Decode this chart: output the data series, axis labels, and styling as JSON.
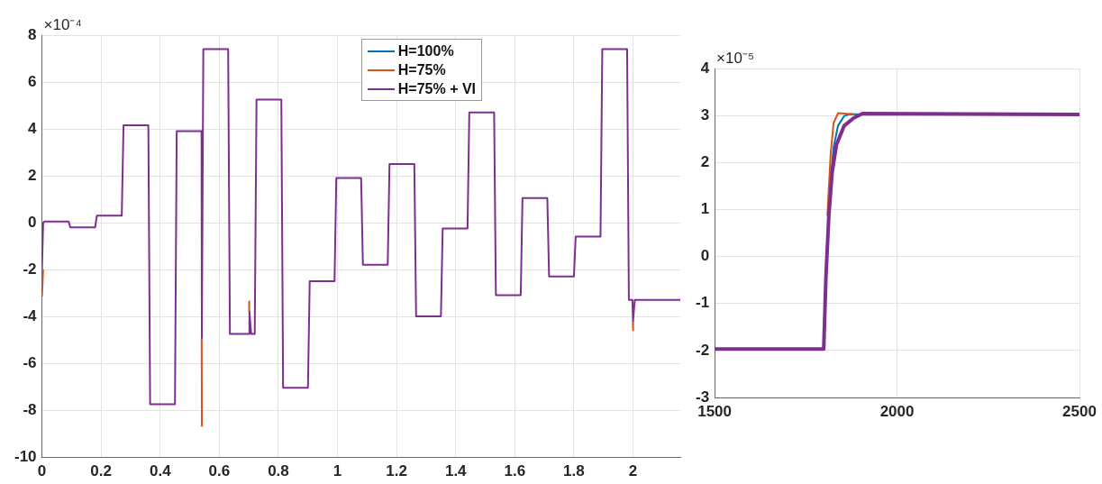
{
  "chart_data": [
    {
      "type": "line",
      "annotations": [
        "×10⁻⁴"
      ],
      "xlim": [
        0,
        2.16
      ],
      "ylim": [
        -10,
        8
      ],
      "xticks": [
        0,
        0.2,
        0.4,
        0.6,
        0.8,
        1,
        1.2,
        1.4,
        1.6,
        1.8,
        2
      ],
      "yticks": [
        -10,
        -8,
        -6,
        -4,
        -2,
        0,
        2,
        4,
        6,
        8
      ],
      "grid": true,
      "legend": "top",
      "series": [
        {
          "name": "H=100%",
          "color": "#0072bd"
        },
        {
          "name": "H=75%",
          "color": "#d95319",
          "x": [
            0,
            0.004,
            0.005,
            0.5405,
            0.541,
            0.542,
            0.7005,
            0.701,
            0.7015,
            0.702,
            1.9995,
            2.0,
            2.0005
          ],
          "values": [
            -3.15,
            -2,
            null,
            -4.9,
            -8.7,
            null,
            -3.8,
            -3.37,
            -3.8,
            null,
            -4.2,
            -4.6,
            -4.2
          ]
        },
        {
          "name": "H=75% + VI",
          "color": "#7e2f8e",
          "x": [
            0,
            0.004,
            0.01,
            0.09,
            0.096,
            0.18,
            0.186,
            0.27,
            0.276,
            0.36,
            0.366,
            0.45,
            0.456,
            0.54,
            0.541,
            0.546,
            0.63,
            0.636,
            0.7,
            0.702,
            0.708,
            0.72,
            0.726,
            0.81,
            0.816,
            0.9,
            0.906,
            0.99,
            0.996,
            1.08,
            1.086,
            1.17,
            1.176,
            1.26,
            1.266,
            1.35,
            1.356,
            1.44,
            1.446,
            1.53,
            1.536,
            1.62,
            1.626,
            1.71,
            1.716,
            1.8,
            1.806,
            1.89,
            1.896,
            1.98,
            1.986,
            1.998,
            2.0,
            2.006,
            2.16
          ],
          "values": [
            -2,
            0,
            0.05,
            0.05,
            -0.2,
            -0.2,
            0.3,
            0.3,
            4.15,
            4.15,
            -7.75,
            -7.75,
            3.9,
            3.9,
            -4.9,
            7.4,
            7.4,
            -4.75,
            -4.75,
            -3.8,
            -4.75,
            -4.75,
            5.25,
            5.25,
            -7.05,
            -7.05,
            -2.5,
            -2.5,
            1.9,
            1.9,
            -1.8,
            -1.8,
            2.5,
            2.5,
            -4.0,
            -4.0,
            -0.25,
            -0.25,
            4.7,
            4.7,
            -3.1,
            -3.1,
            1.05,
            1.05,
            -2.3,
            -2.3,
            -0.6,
            -0.6,
            7.4,
            7.4,
            -3.3,
            -3.3,
            -4.2,
            -3.3,
            -3.3
          ]
        }
      ]
    },
    {
      "type": "line",
      "annotations": [
        "×10⁻⁵"
      ],
      "xlim": [
        1500,
        2500
      ],
      "ylim": [
        -3,
        4
      ],
      "xticks": [
        1500,
        2000,
        2500
      ],
      "yticks": [
        -3,
        -2,
        -1,
        0,
        1,
        2,
        3,
        4
      ],
      "grid": true,
      "series": [
        {
          "color": "#0072bd",
          "x": [
            1813,
            1826,
            1838,
            1855,
            1872,
            1900
          ],
          "values": [
            1.2,
            2.32,
            2.78,
            2.99,
            3.03,
            3.02
          ]
        },
        {
          "color": "#d95319",
          "x": [
            1809,
            1818,
            1826,
            1838,
            1855,
            1880
          ],
          "values": [
            0.87,
            2.18,
            2.84,
            3.05,
            3.04,
            3.02
          ]
        },
        {
          "color": "#7e2f8e",
          "x": [
            1500,
            1799,
            1805,
            1813,
            1822,
            1834,
            1855,
            1880,
            1905,
            2500
          ],
          "values": [
            -1.97,
            -1.97,
            -0.45,
            0.87,
            1.79,
            2.38,
            2.78,
            2.94,
            3.04,
            3.02
          ]
        }
      ]
    }
  ]
}
